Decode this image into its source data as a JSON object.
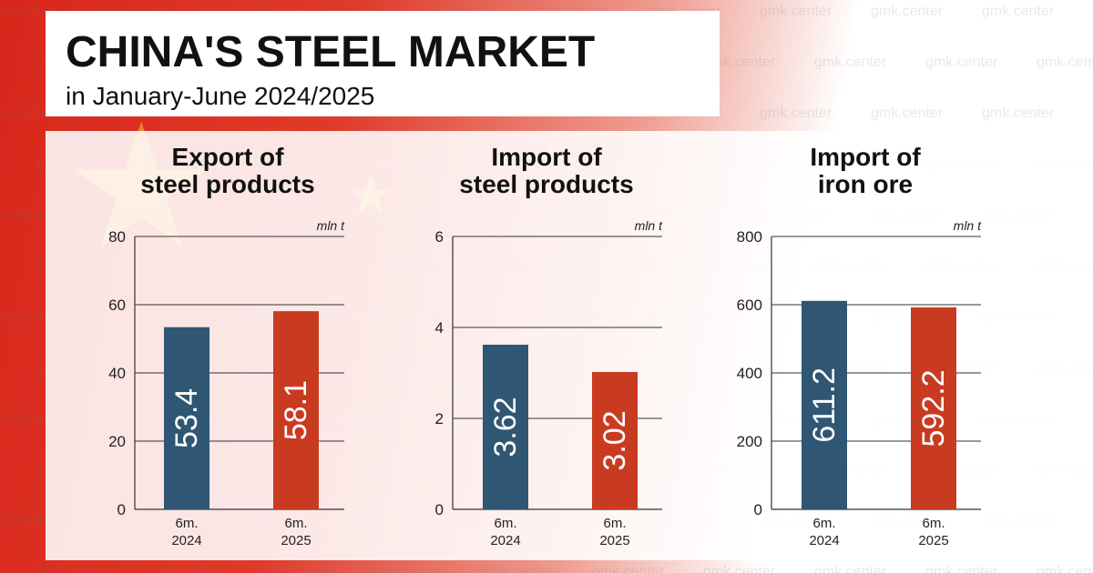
{
  "header": {
    "title": "CHINA'S STEEL MARKET",
    "subtitle": "in January-June 2024/2025"
  },
  "watermark": {
    "text": "gmk.center"
  },
  "colors": {
    "bar_2024": "#2f5672",
    "bar_2025": "#c93b21",
    "flag_red": "#d8271c",
    "flag_star": "#f6cc2a"
  },
  "chart_data": [
    {
      "type": "bar",
      "title_lines": [
        "Export of",
        "steel products"
      ],
      "unit": "mln t",
      "categories": [
        [
          "6m.",
          "2024"
        ],
        [
          "6m.",
          "2025"
        ]
      ],
      "values": [
        53.4,
        58.1
      ],
      "labels": [
        "53.4",
        "58.1"
      ],
      "ylim": [
        0,
        80
      ],
      "yticks": [
        0,
        20,
        40,
        60,
        80
      ],
      "grid": true
    },
    {
      "type": "bar",
      "title_lines": [
        "Import of",
        "steel products"
      ],
      "unit": "mln t",
      "categories": [
        [
          "6m.",
          "2024"
        ],
        [
          "6m.",
          "2025"
        ]
      ],
      "values": [
        3.62,
        3.02
      ],
      "labels": [
        "3.62",
        "3.02"
      ],
      "ylim": [
        0,
        6
      ],
      "yticks": [
        0,
        2,
        4,
        6
      ],
      "grid": true
    },
    {
      "type": "bar",
      "title_lines": [
        "Import of",
        "iron ore"
      ],
      "unit": "mln t",
      "categories": [
        [
          "6m.",
          "2024"
        ],
        [
          "6m.",
          "2025"
        ]
      ],
      "values": [
        611.2,
        592.2
      ],
      "labels": [
        "611.2",
        "592.2"
      ],
      "ylim": [
        0,
        800
      ],
      "yticks": [
        0,
        200,
        400,
        600,
        800
      ],
      "grid": true
    }
  ]
}
